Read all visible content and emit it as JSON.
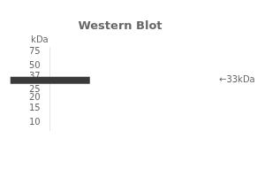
{
  "chart_data": {
    "type": "scatter",
    "title": "Western Blot",
    "ylabel": "kDa",
    "categories": [
      null
    ],
    "values": [
      33
    ],
    "color": "#3a3a3a",
    "marker": "dash",
    "log": "y",
    "ylim": [
      8,
      85
    ],
    "yticks": [
      75,
      50,
      37,
      25,
      20,
      15,
      10
    ],
    "grid": false,
    "tick_labels": "y",
    "annotations": [
      {
        "text": "←33kDa",
        "y": 33
      }
    ]
  }
}
